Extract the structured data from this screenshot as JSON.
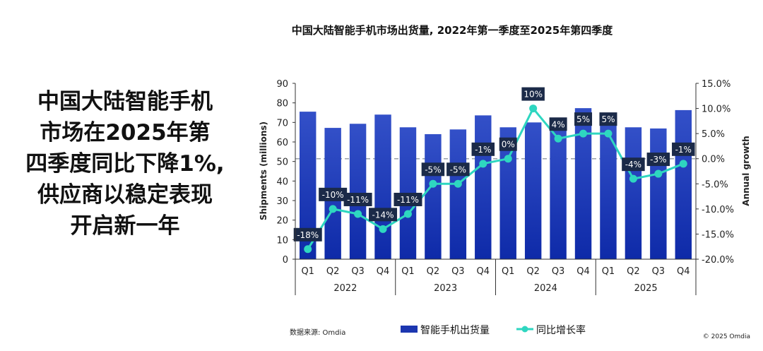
{
  "headline": [
    "中国大陆智能手机",
    "市场在2025年第",
    "四季度同比下降1%,",
    "供应商以稳定表现",
    "开启新一年"
  ],
  "chart_data": {
    "type": "bar+line",
    "title": "中国大陆智能手机市场出货量, 2022年第一季度至2025年第四季度",
    "categories": [
      "Q1",
      "Q2",
      "Q3",
      "Q4",
      "Q1",
      "Q2",
      "Q3",
      "Q4",
      "Q1",
      "Q2",
      "Q3",
      "Q4",
      "Q1",
      "Q2",
      "Q3",
      "Q4"
    ],
    "years": [
      "2022",
      "2023",
      "2024",
      "2025"
    ],
    "ylabel": "Shipments (millions)",
    "y2label": "Annual growth",
    "ylim": [
      0,
      90
    ],
    "yticks": [
      "0",
      "10",
      "20",
      "30",
      "40",
      "50",
      "60",
      "70",
      "80",
      "90"
    ],
    "y2lim": [
      -20,
      15
    ],
    "y2ticks": [
      "-20.0%",
      "-15.0%",
      "-10.0%",
      "-5.0%",
      "0.0%",
      "5.0%",
      "10.0%",
      "15.0%"
    ],
    "series": [
      {
        "name": "智能手机出货量",
        "type": "bar",
        "color": "#1f3cb8",
        "values": [
          75.5,
          67.2,
          69.3,
          74.0,
          67.5,
          64.0,
          66.4,
          73.6,
          67.5,
          70.0,
          68.0,
          77.3,
          69.0,
          67.5,
          66.9,
          76.3
        ]
      },
      {
        "name": "同比增长率",
        "type": "line",
        "axis": "right",
        "color": "#2ed6c0",
        "values": [
          -18,
          -10,
          -11,
          -14,
          -11,
          -5,
          -5,
          -1,
          0,
          10,
          4,
          5,
          5,
          -4,
          -3,
          -1
        ],
        "labels": [
          "-18%",
          "-10%",
          "-11%",
          "-14%",
          "-11%",
          "-5%",
          "-5%",
          "-1%",
          "0%",
          "10%",
          "4%",
          "5%",
          "5%",
          "-4%",
          "-3%",
          "-1%"
        ]
      }
    ],
    "reference_line": {
      "axis": "right",
      "value": 0,
      "style": "dashed"
    },
    "legend": "bottom",
    "source": "数据来源: Omdia",
    "copyright": "© 2025 Omdia"
  }
}
